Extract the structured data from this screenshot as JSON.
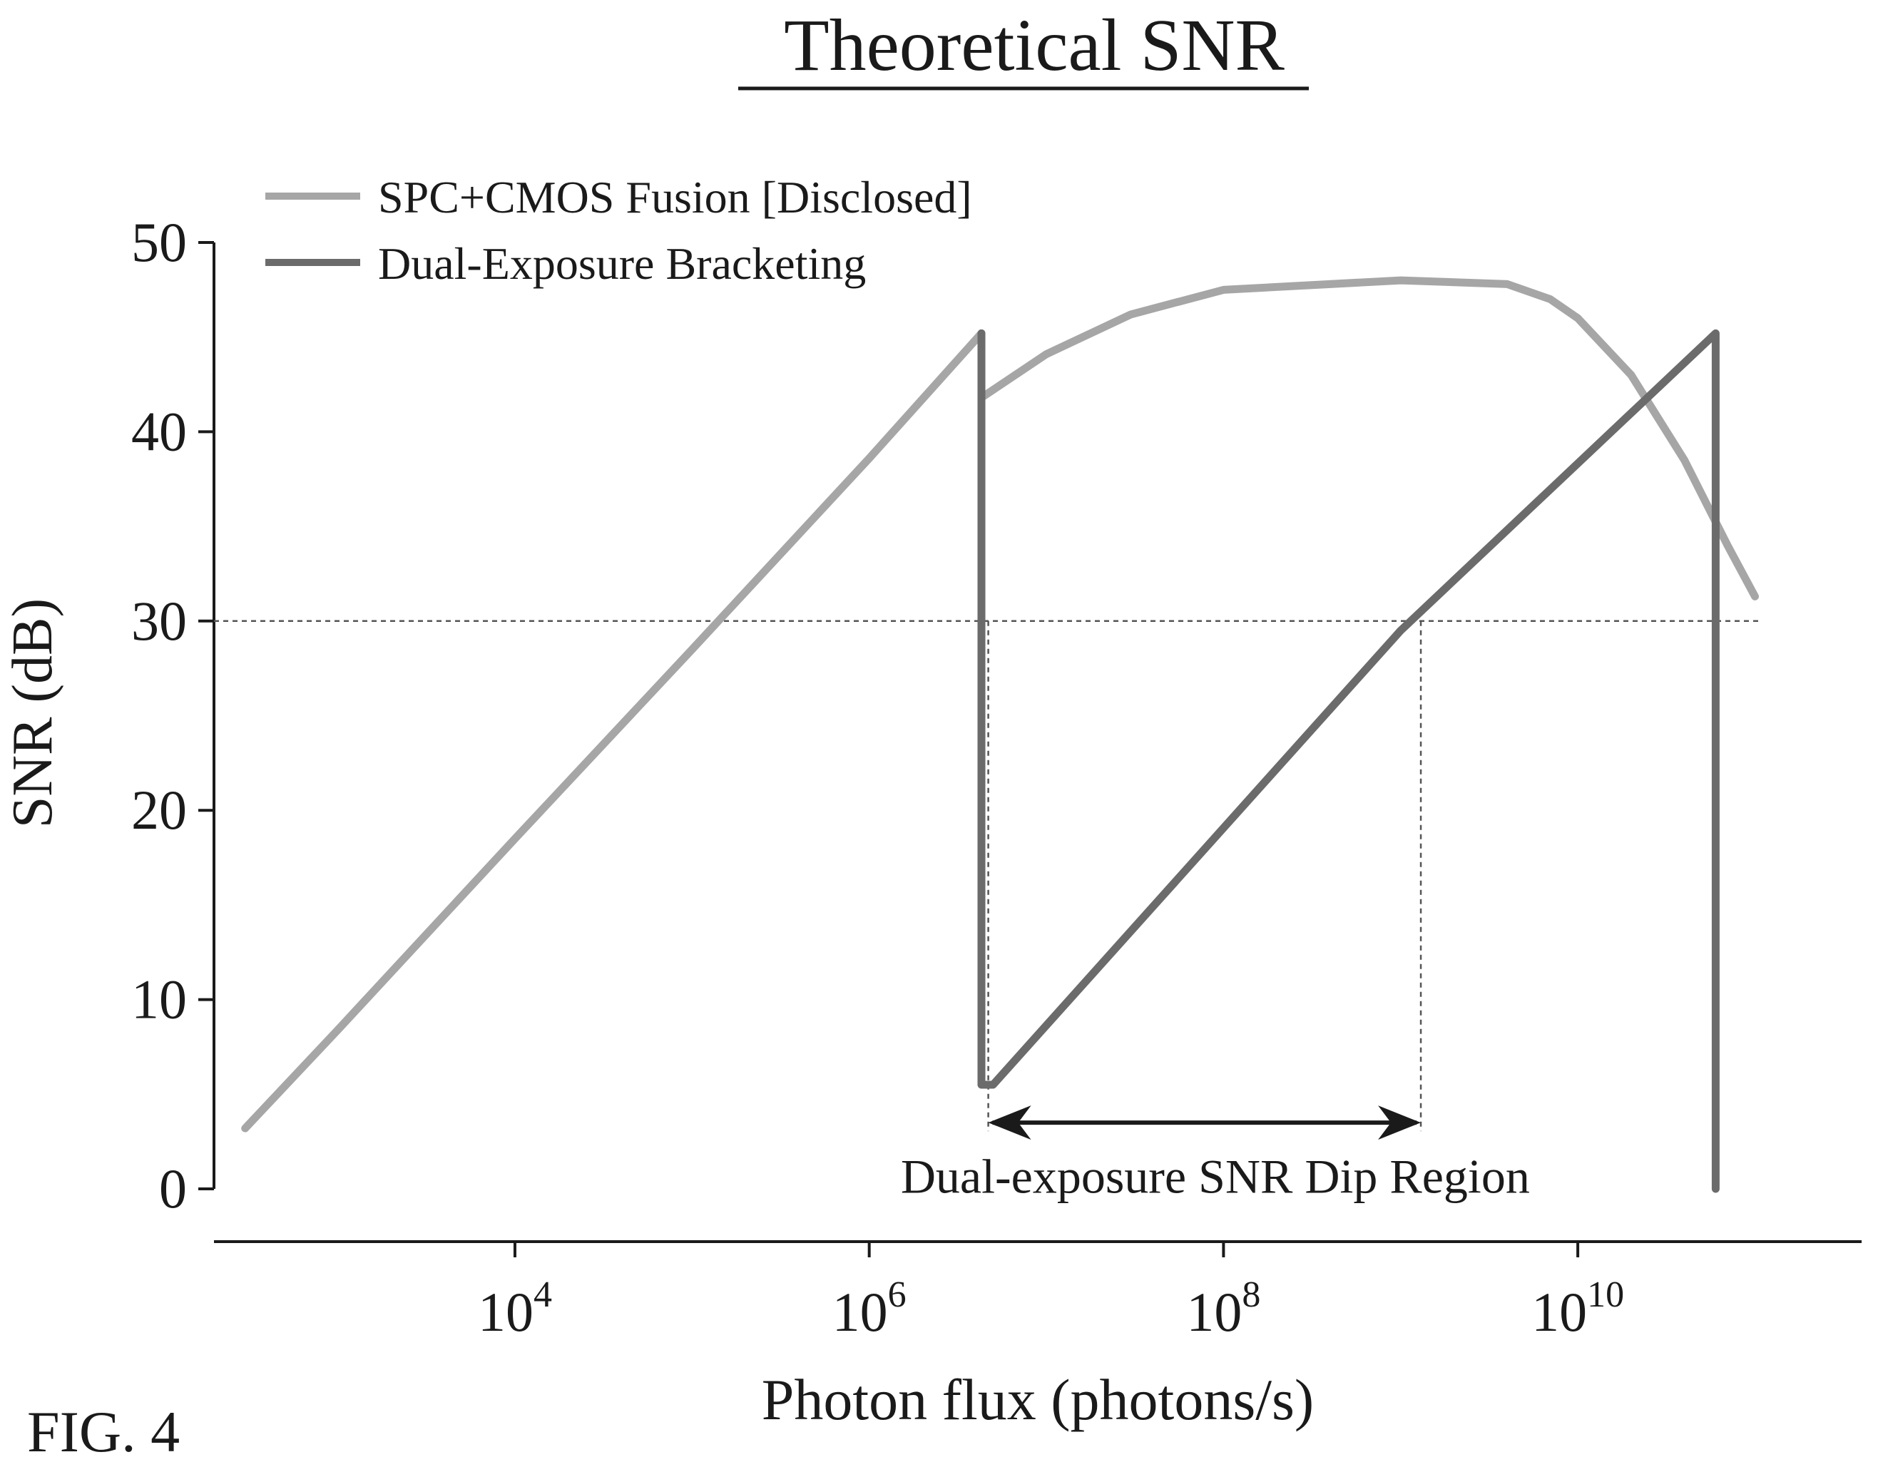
{
  "figure_label": "FIG. 4",
  "chart_data": {
    "type": "line",
    "title": "Theoretical SNR",
    "xlabel": "Photon flux (photons/s)",
    "ylabel": "SNR (dB)",
    "x_scale": "log",
    "xlim": [
      200,
      400000000000
    ],
    "ylim": [
      0,
      50
    ],
    "x_ticks": [
      {
        "value": 10000,
        "base": "10",
        "exp": "4"
      },
      {
        "value": 1000000,
        "base": "10",
        "exp": "6"
      },
      {
        "value": 100000000,
        "base": "10",
        "exp": "8"
      },
      {
        "value": 10000000000,
        "base": "10",
        "exp": "10"
      }
    ],
    "y_ticks": [
      0,
      10,
      20,
      30,
      40,
      50
    ],
    "grid": false,
    "legend_position": "top-left",
    "reference_line": {
      "y": 30,
      "style": "dotted"
    },
    "series": [
      {
        "name": "SPC+CMOS Fusion [Disclosed]",
        "color": "#a6a6a6",
        "points": [
          [
            300,
            3.2
          ],
          [
            1000,
            8.4
          ],
          [
            10000,
            18.5
          ],
          [
            100000,
            28.5
          ],
          [
            1000000,
            38.6
          ],
          [
            4300000,
            45.2
          ],
          [
            4300000,
            41.8
          ],
          [
            10000000,
            44.1
          ],
          [
            30000000,
            46.2
          ],
          [
            100000000,
            47.5
          ],
          [
            1000000000,
            48.0
          ],
          [
            4000000000,
            47.8
          ],
          [
            7000000000,
            47.0
          ],
          [
            10000000000,
            46.0
          ],
          [
            20000000000,
            43.0
          ],
          [
            40000000000,
            38.5
          ],
          [
            70000000000,
            34.0
          ],
          [
            100000000000,
            31.3
          ]
        ]
      },
      {
        "name": "Dual-Exposure Bracketing",
        "color": "#6b6b6b",
        "points": [
          [
            4300000,
            45.2
          ],
          [
            4300000,
            5.5
          ],
          [
            5000000,
            5.5
          ],
          [
            1000000000,
            29.5
          ],
          [
            60000000000,
            45.2
          ],
          [
            60000000000,
            0
          ]
        ]
      }
    ],
    "annotations": [
      {
        "text": "Dual-exposure SNR Dip Region",
        "x_from": 4700000,
        "x_to": 1300000000,
        "y_arrow": 3.5,
        "y_text": 1.0
      }
    ]
  }
}
